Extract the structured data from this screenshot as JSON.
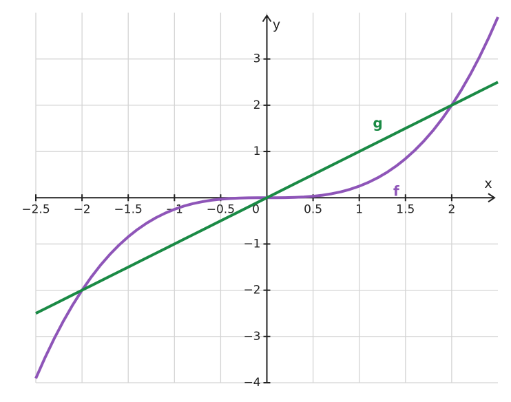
{
  "chart_data": {
    "type": "line",
    "x_label": "x",
    "y_label": "y",
    "x": [
      -2.5,
      -2.4,
      -2.3,
      -2.2,
      -2.1,
      -2.0,
      -1.9,
      -1.8,
      -1.7,
      -1.6,
      -1.5,
      -1.4,
      -1.3,
      -1.2,
      -1.1,
      -1.0,
      -0.9,
      -0.8,
      -0.7,
      -0.6,
      -0.5,
      -0.4,
      -0.3,
      -0.2,
      -0.1,
      0,
      0.1,
      0.2,
      0.3,
      0.4,
      0.5,
      0.6,
      0.7,
      0.8,
      0.9,
      1.0,
      1.1,
      1.2,
      1.3,
      1.4,
      1.5,
      1.6,
      1.7,
      1.8,
      1.9,
      2.0,
      2.1,
      2.2,
      2.3,
      2.4,
      2.5
    ],
    "series": [
      {
        "name": "f",
        "color": "#8e55b8",
        "values": [
          -3.906,
          -3.456,
          -3.042,
          -2.662,
          -2.315,
          -2,
          -1.715,
          -1.458,
          -1.228,
          -1.024,
          -0.844,
          -0.686,
          -0.549,
          -0.432,
          -0.333,
          -0.25,
          -0.182,
          -0.128,
          -0.086,
          -0.054,
          -0.031,
          -0.016,
          -0.007,
          -0.002,
          0,
          0,
          0,
          0.002,
          0.007,
          0.016,
          0.031,
          0.054,
          0.086,
          0.128,
          0.182,
          0.25,
          0.333,
          0.432,
          0.549,
          0.686,
          0.844,
          1.024,
          1.228,
          1.458,
          1.715,
          2,
          2.315,
          2.662,
          3.042,
          3.456,
          3.906
        ]
      },
      {
        "name": "g",
        "color": "#1a8a45",
        "values": [
          -2.5,
          -2.4,
          -2.3,
          -2.2,
          -2.1,
          -2.0,
          -1.9,
          -1.8,
          -1.7,
          -1.6,
          -1.5,
          -1.4,
          -1.3,
          -1.2,
          -1.1,
          -1.0,
          -0.9,
          -0.8,
          -0.7,
          -0.6,
          -0.5,
          -0.4,
          -0.3,
          -0.2,
          -0.1,
          0,
          0.1,
          0.2,
          0.3,
          0.4,
          0.5,
          0.6,
          0.7,
          0.8,
          0.9,
          1.0,
          1.1,
          1.2,
          1.3,
          1.4,
          1.5,
          1.6,
          1.7,
          1.8,
          1.9,
          2.0,
          2.1,
          2.2,
          2.3,
          2.4,
          2.5
        ]
      }
    ],
    "xlim": [
      -2.5,
      2.5
    ],
    "ylim": [
      -4,
      4
    ],
    "xticks": [
      {
        "value": -2.5,
        "label": "−2.5"
      },
      {
        "value": -2,
        "label": "−2"
      },
      {
        "value": -1.5,
        "label": "−1.5"
      },
      {
        "value": -1,
        "label": "−1"
      },
      {
        "value": -0.5,
        "label": "−0.5"
      },
      0,
      0.5,
      1,
      1.5,
      2
    ],
    "yticks": [
      {
        "value": -4,
        "label": "−4"
      },
      {
        "value": -3,
        "label": "−3"
      },
      {
        "value": -2,
        "label": "−2"
      },
      {
        "value": -1,
        "label": "−1"
      },
      1,
      2,
      3
    ],
    "grid": true
  }
}
